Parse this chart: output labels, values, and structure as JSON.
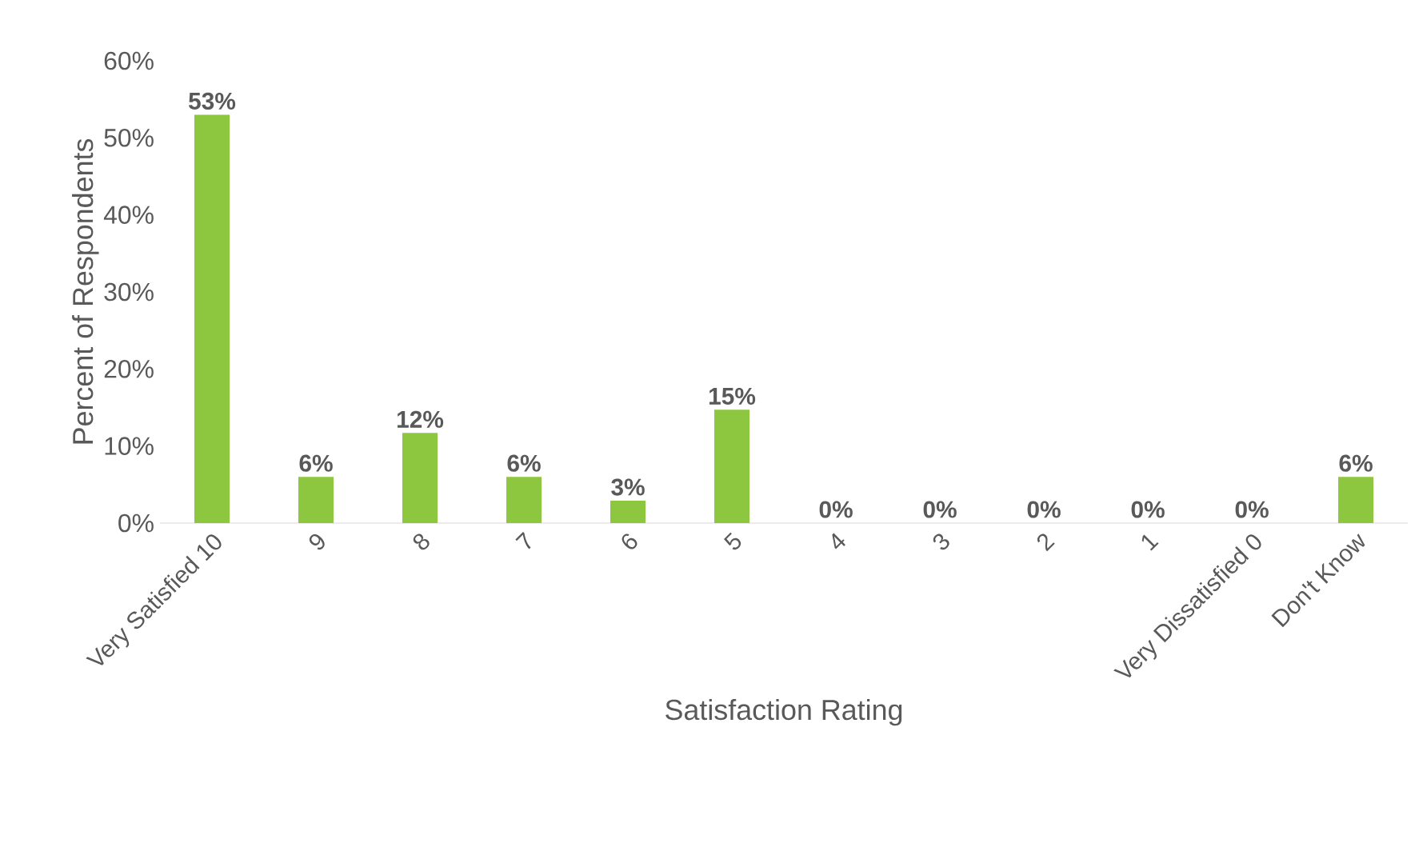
{
  "chart_data": {
    "type": "bar",
    "xlabel": "Satisfaction Rating",
    "ylabel": "Percent of Respondents",
    "categories": [
      "Very Satisfied 10",
      "9",
      "8",
      "7",
      "6",
      "5",
      "4",
      "3",
      "2",
      "1",
      "Very Dissatisfied 0",
      "Don't Know"
    ],
    "values": [
      53,
      6,
      11.7,
      6,
      2.9,
      14.7,
      0,
      0,
      0,
      0,
      0,
      6
    ],
    "value_labels": [
      "53%",
      "6%",
      "12%",
      "6%",
      "3%",
      "15%",
      "0%",
      "0%",
      "0%",
      "0%",
      "0%",
      "6%"
    ],
    "color": "#8dc63f",
    "ylim": [
      0,
      60
    ],
    "yticks": [
      {
        "value": 0,
        "label": "0%"
      },
      {
        "value": 10,
        "label": "10%"
      },
      {
        "value": 20,
        "label": "20%"
      },
      {
        "value": 30,
        "label": "30%"
      },
      {
        "value": 40,
        "label": "40%"
      },
      {
        "value": 50,
        "label": "50%"
      },
      {
        "value": 60,
        "label": "60%"
      }
    ]
  }
}
